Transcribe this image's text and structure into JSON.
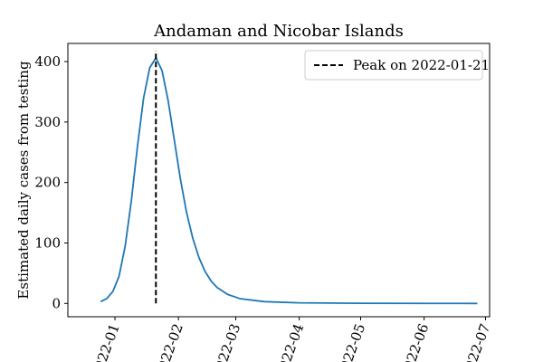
{
  "chart_data": {
    "type": "line",
    "title": "Andaman and Nicobar Islands",
    "xlabel": "",
    "ylabel": "Estimated daily cases from testing",
    "x_axis_type": "date",
    "xlim": [
      "2021-12-09",
      "2022-07-03"
    ],
    "ylim": [
      -22,
      430
    ],
    "xticks": [
      "2022-01-01",
      "2022-02-01",
      "2022-03-01",
      "2022-04-01",
      "2022-05-01",
      "2022-06-01",
      "2022-07-01"
    ],
    "xtick_labels": [
      "2022-01",
      "2022-02",
      "2022-03",
      "2022-04",
      "2022-05",
      "2022-06",
      "2022-07"
    ],
    "yticks": [
      0,
      100,
      200,
      300,
      400
    ],
    "ytick_labels": [
      "0",
      "100",
      "200",
      "300",
      "400"
    ],
    "grid": false,
    "legend_position": "upper right",
    "series": [
      {
        "color": "#1f77b4",
        "points": [
          [
            "2021-12-25",
            3
          ],
          [
            "2021-12-28",
            8
          ],
          [
            "2021-12-31",
            20
          ],
          [
            "2022-01-03",
            45
          ],
          [
            "2022-01-06",
            95
          ],
          [
            "2022-01-09",
            170
          ],
          [
            "2022-01-12",
            260
          ],
          [
            "2022-01-15",
            340
          ],
          [
            "2022-01-18",
            390
          ],
          [
            "2022-01-21",
            406
          ],
          [
            "2022-01-24",
            385
          ],
          [
            "2022-01-27",
            335
          ],
          [
            "2022-01-30",
            270
          ],
          [
            "2022-02-02",
            205
          ],
          [
            "2022-02-05",
            150
          ],
          [
            "2022-02-08",
            108
          ],
          [
            "2022-02-11",
            76
          ],
          [
            "2022-02-14",
            53
          ],
          [
            "2022-02-17",
            37
          ],
          [
            "2022-02-20",
            26
          ],
          [
            "2022-02-25",
            15
          ],
          [
            "2022-03-03",
            8
          ],
          [
            "2022-03-15",
            3
          ],
          [
            "2022-04-01",
            1
          ],
          [
            "2022-05-01",
            0.3
          ],
          [
            "2022-06-01",
            0.1
          ],
          [
            "2022-06-27",
            0
          ]
        ]
      }
    ],
    "annotations": [
      {
        "kind": "vline",
        "x": "2022-01-21",
        "y_range": [
          0,
          418
        ],
        "style": "dashed",
        "color": "#000000",
        "label": "Peak on 2022-01-21"
      }
    ]
  }
}
